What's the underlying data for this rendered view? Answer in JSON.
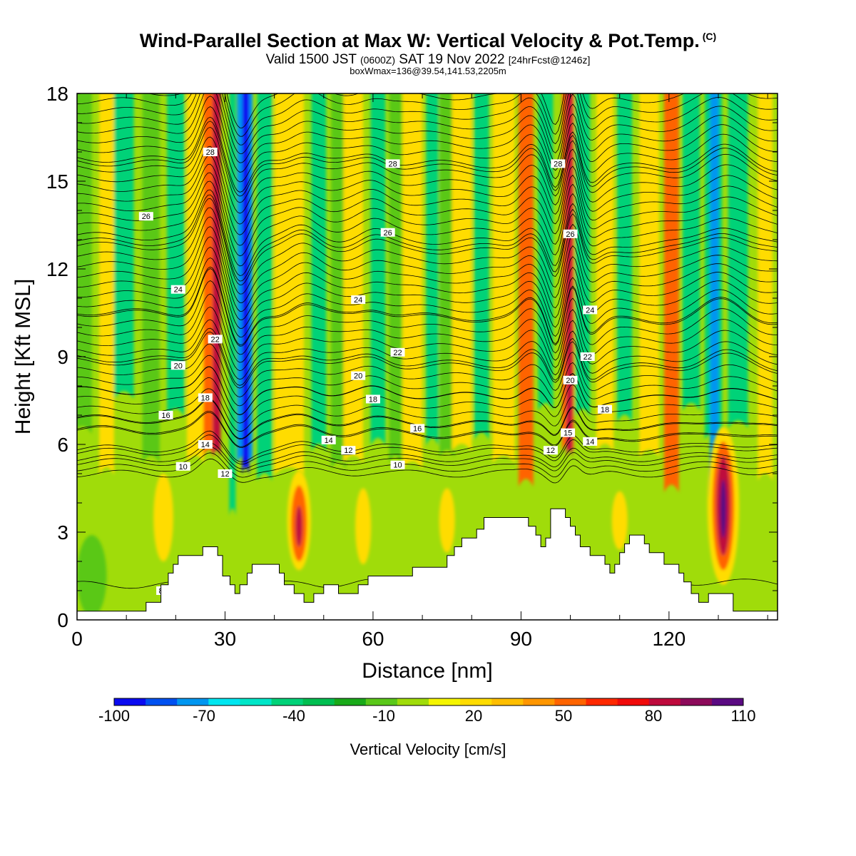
{
  "title": {
    "main": "Wind-Parallel Section at Max W: Vertical Velocity & Pot.Temp.",
    "mark": "(C)",
    "sub_valid": "Valid 1500 JST",
    "sub_z": "(0600Z)",
    "sub_date": "SAT 19 Nov 2022",
    "sub_fcst": "[24hrFcst@1246z]",
    "box": "boxWmax=136@39.54,141.53,2205m"
  },
  "chart_data": {
    "type": "heatmap",
    "xlabel": "Distance [nm]",
    "ylabel": "Height [Kft MSL]",
    "xlim": [
      0,
      142
    ],
    "ylim": [
      0,
      18
    ],
    "xticks": [
      "0",
      "30",
      "60",
      "90",
      "120"
    ],
    "xtick_values": [
      0,
      30,
      60,
      90,
      120
    ],
    "yticks": [
      "0",
      "3",
      "6",
      "9",
      "12",
      "15",
      "18"
    ],
    "ytick_values": [
      0,
      3,
      6,
      9,
      12,
      15,
      18
    ],
    "colorbar": {
      "label": "Vertical Velocity [cm/s]",
      "tick_labels": [
        "-100",
        "-70",
        "-40",
        "-10",
        "20",
        "50",
        "80",
        "110"
      ],
      "tick_values": [
        -100,
        -70,
        -40,
        -10,
        20,
        50,
        80,
        110
      ],
      "colors": [
        "#0a0af0",
        "#0050f0",
        "#0096f0",
        "#00e6f0",
        "#00e6c8",
        "#00d278",
        "#00be50",
        "#19aa19",
        "#5ac819",
        "#a0dc0a",
        "#f5f500",
        "#ffdc00",
        "#ffbe00",
        "#ff9600",
        "#ff6400",
        "#ff2800",
        "#f00a0a",
        "#be0a3c",
        "#8c0a5a",
        "#5a0a82"
      ]
    },
    "background_color": "#a0dc0a",
    "velocity_bands": [
      {
        "x": 1,
        "w": 4,
        "v": -10,
        "ext": 6.6
      },
      {
        "x": 6,
        "w": 3,
        "v": 20,
        "ext": 5.2
      },
      {
        "x": 9.5,
        "w": 4,
        "v": -40,
        "ext": 7.8
      },
      {
        "x": 15,
        "w": 3.5,
        "v": -10,
        "ext": 5.6
      },
      {
        "x": 20,
        "w": 3.5,
        "v": -40,
        "ext": 7.2
      },
      {
        "x": 24,
        "w": 3.5,
        "v": 20,
        "ext": 5.6
      },
      {
        "x": 26.7,
        "w": 2.2,
        "v": 50,
        "ext": 5.8
      },
      {
        "x": 28.3,
        "w": 1.6,
        "v": 80,
        "ext": 5.8
      },
      {
        "x": 31.5,
        "w": 1.3,
        "v": -40,
        "ext": 3.8
      },
      {
        "x": 34,
        "w": 3.2,
        "v": -70,
        "ext": 5.6
      },
      {
        "x": 34.2,
        "w": 1.4,
        "v": -100,
        "ext": 5.2
      },
      {
        "x": 38,
        "w": 3,
        "v": -40,
        "ext": 5.0
      },
      {
        "x": 43,
        "w": 6,
        "v": 20,
        "ext": 5.2
      },
      {
        "x": 49,
        "w": 3,
        "v": -40,
        "ext": 6.0
      },
      {
        "x": 53,
        "w": 3,
        "v": -10,
        "ext": 5.4
      },
      {
        "x": 56,
        "w": 4,
        "v": 20,
        "ext": 5.6
      },
      {
        "x": 61,
        "w": 3,
        "v": -40,
        "ext": 6.2
      },
      {
        "x": 64.5,
        "w": 2.5,
        "v": -10,
        "ext": 5.6
      },
      {
        "x": 68,
        "w": 4,
        "v": 20,
        "ext": 5.4
      },
      {
        "x": 72,
        "w": 2.5,
        "v": -40,
        "ext": 6.2
      },
      {
        "x": 75,
        "w": 3,
        "v": -10,
        "ext": 5.8
      },
      {
        "x": 78,
        "w": 4,
        "v": 20,
        "ext": 6.0
      },
      {
        "x": 82,
        "w": 3,
        "v": -40,
        "ext": 6.4
      },
      {
        "x": 86.5,
        "w": 4.5,
        "v": 20,
        "ext": 5.6
      },
      {
        "x": 91,
        "w": 3,
        "v": 50,
        "ext": 4.8
      },
      {
        "x": 95,
        "w": 3,
        "v": -40,
        "ext": 7.4
      },
      {
        "x": 99.5,
        "w": 2.4,
        "v": 50,
        "ext": 6.0
      },
      {
        "x": 99.8,
        "w": 1.2,
        "v": 80,
        "ext": 5.8
      },
      {
        "x": 102.5,
        "w": 3,
        "v": -40,
        "ext": 7.2
      },
      {
        "x": 107,
        "w": 3.5,
        "v": 20,
        "ext": 6.0
      },
      {
        "x": 111,
        "w": 3,
        "v": -40,
        "ext": 7.0
      },
      {
        "x": 116,
        "w": 4,
        "v": 20,
        "ext": 5.8
      },
      {
        "x": 120.5,
        "w": 3,
        "v": 50,
        "ext": 4.6
      },
      {
        "x": 124.5,
        "w": 3.5,
        "v": -40,
        "ext": 7.4
      },
      {
        "x": 129,
        "w": 3.5,
        "v": -40,
        "ext": 6.4
      },
      {
        "x": 129.2,
        "w": 1.8,
        "v": -70,
        "ext": 4.4
      },
      {
        "x": 134,
        "w": 4,
        "v": -40,
        "ext": 6.8
      },
      {
        "x": 139.5,
        "w": 3,
        "v": 20,
        "ext": 5.0
      }
    ],
    "velocity_blobs": [
      {
        "x": 45,
        "y": 3.4,
        "rx": 2.4,
        "ry": 1.7,
        "v": 20
      },
      {
        "x": 45,
        "y": 3.3,
        "rx": 1.6,
        "ry": 1.3,
        "v": 50
      },
      {
        "x": 45,
        "y": 3.2,
        "rx": 0.7,
        "ry": 0.7,
        "v": 80
      },
      {
        "x": 58,
        "y": 3.2,
        "rx": 1.6,
        "ry": 1.3,
        "v": 20
      },
      {
        "x": 75,
        "y": 3.4,
        "rx": 1.6,
        "ry": 1.1,
        "v": 20
      },
      {
        "x": 110,
        "y": 3.4,
        "rx": 1.6,
        "ry": 1.0,
        "v": 20
      },
      {
        "x": 131,
        "y": 3.9,
        "rx": 3.2,
        "ry": 2.7,
        "v": 20
      },
      {
        "x": 131,
        "y": 3.9,
        "rx": 2.2,
        "ry": 2.2,
        "v": 50
      },
      {
        "x": 131,
        "y": 3.9,
        "rx": 1.4,
        "ry": 1.7,
        "v": 80
      },
      {
        "x": 131,
        "y": 3.8,
        "rx": 0.6,
        "ry": 1.0,
        "v": 110
      },
      {
        "x": 17.5,
        "y": 3.5,
        "rx": 2.0,
        "ry": 1.5,
        "v": 20
      },
      {
        "x": 3,
        "y": 1.5,
        "rx": 3.0,
        "ry": 1.4,
        "v": -10
      }
    ],
    "terrain": [
      [
        0,
        0.3
      ],
      [
        14,
        0.3
      ],
      [
        14,
        0.6
      ],
      [
        17,
        0.6
      ],
      [
        17,
        1.2
      ],
      [
        18.5,
        1.2
      ],
      [
        18.5,
        1.6
      ],
      [
        19.5,
        1.6
      ],
      [
        19.5,
        1.9
      ],
      [
        20.5,
        1.9
      ],
      [
        20.5,
        2.2
      ],
      [
        25.5,
        2.2
      ],
      [
        25.5,
        2.5
      ],
      [
        28.5,
        2.5
      ],
      [
        28.5,
        2.2
      ],
      [
        29.5,
        2.2
      ],
      [
        29.5,
        1.5
      ],
      [
        31,
        1.5
      ],
      [
        31,
        1.2
      ],
      [
        32,
        1.2
      ],
      [
        32,
        0.9
      ],
      [
        33,
        0.9
      ],
      [
        33,
        1.2
      ],
      [
        34.5,
        1.2
      ],
      [
        34.5,
        1.6
      ],
      [
        35.5,
        1.6
      ],
      [
        35.5,
        1.9
      ],
      [
        41,
        1.9
      ],
      [
        41,
        1.6
      ],
      [
        42,
        1.6
      ],
      [
        42,
        1.2
      ],
      [
        44,
        1.2
      ],
      [
        44,
        0.9
      ],
      [
        46,
        0.9
      ],
      [
        46,
        0.6
      ],
      [
        48,
        0.6
      ],
      [
        48,
        0.9
      ],
      [
        50,
        0.9
      ],
      [
        50,
        1.2
      ],
      [
        53,
        1.2
      ],
      [
        53,
        0.9
      ],
      [
        57,
        0.9
      ],
      [
        57,
        1.2
      ],
      [
        59,
        1.2
      ],
      [
        59,
        1.5
      ],
      [
        68,
        1.5
      ],
      [
        68,
        1.8
      ],
      [
        75,
        1.8
      ],
      [
        75,
        2.2
      ],
      [
        76.5,
        2.2
      ],
      [
        76.5,
        2.5
      ],
      [
        78,
        2.5
      ],
      [
        78,
        2.8
      ],
      [
        81,
        2.8
      ],
      [
        81,
        3.1
      ],
      [
        82.5,
        3.1
      ],
      [
        82.5,
        3.5
      ],
      [
        91.5,
        3.5
      ],
      [
        91.5,
        3.2
      ],
      [
        93,
        3.2
      ],
      [
        93,
        2.9
      ],
      [
        94,
        2.9
      ],
      [
        94,
        2.5
      ],
      [
        95,
        2.5
      ],
      [
        95,
        2.8
      ],
      [
        96,
        2.8
      ],
      [
        96,
        3.8
      ],
      [
        99,
        3.8
      ],
      [
        99,
        3.5
      ],
      [
        100,
        3.5
      ],
      [
        100,
        3.2
      ],
      [
        101,
        3.2
      ],
      [
        101,
        2.9
      ],
      [
        102,
        2.9
      ],
      [
        102,
        2.5
      ],
      [
        104,
        2.5
      ],
      [
        104,
        2.2
      ],
      [
        107,
        2.2
      ],
      [
        107,
        1.9
      ],
      [
        108,
        1.9
      ],
      [
        108,
        1.6
      ],
      [
        109,
        1.6
      ],
      [
        109,
        1.9
      ],
      [
        110,
        1.9
      ],
      [
        110,
        2.3
      ],
      [
        111,
        2.3
      ],
      [
        111,
        2.6
      ],
      [
        112,
        2.6
      ],
      [
        112,
        2.9
      ],
      [
        115,
        2.9
      ],
      [
        115,
        2.6
      ],
      [
        116,
        2.6
      ],
      [
        116,
        2.3
      ],
      [
        119,
        2.3
      ],
      [
        119,
        1.9
      ],
      [
        122,
        1.9
      ],
      [
        122,
        1.6
      ],
      [
        123,
        1.6
      ],
      [
        123,
        1.3
      ],
      [
        124.5,
        1.3
      ],
      [
        124.5,
        0.9
      ],
      [
        126,
        0.9
      ],
      [
        126,
        0.6
      ],
      [
        128,
        0.6
      ],
      [
        128,
        0.9
      ],
      [
        133,
        0.9
      ],
      [
        133,
        0.3
      ],
      [
        142,
        0.3
      ]
    ],
    "theta_contours": [
      {
        "y": 1.2,
        "label": "8"
      },
      {
        "y": 5.0,
        "label": "10"
      },
      {
        "y": 5.4,
        "label": "12"
      },
      {
        "y": 5.75,
        "label": "14"
      },
      {
        "y": 6.15,
        "label": "16"
      },
      {
        "y": 6.55,
        "label": "18"
      },
      {
        "y": 7.5,
        "label": "20"
      },
      {
        "y": 8.6,
        "label": "22"
      },
      {
        "y": 10.2,
        "label": "24"
      },
      {
        "y": 12.6,
        "label": "26"
      },
      {
        "y": 15.3,
        "label": "28"
      }
    ],
    "contour_labels": [
      {
        "text": "8",
        "x": 17,
        "y": 1.0
      },
      {
        "text": "10",
        "x": 21.5,
        "y": 5.25
      },
      {
        "text": "12",
        "x": 30,
        "y": 5.0
      },
      {
        "text": "12",
        "x": 55,
        "y": 5.8
      },
      {
        "text": "12",
        "x": 96,
        "y": 5.8
      },
      {
        "text": "14",
        "x": 26,
        "y": 6.0
      },
      {
        "text": "14",
        "x": 51,
        "y": 6.15
      },
      {
        "text": "14",
        "x": 104,
        "y": 6.1
      },
      {
        "text": "10",
        "x": 65,
        "y": 5.3
      },
      {
        "text": "16",
        "x": 18,
        "y": 7.0
      },
      {
        "text": "16",
        "x": 69,
        "y": 6.55
      },
      {
        "text": "15",
        "x": 99.5,
        "y": 6.4
      },
      {
        "text": "18",
        "x": 26,
        "y": 7.6
      },
      {
        "text": "18",
        "x": 60,
        "y": 7.55
      },
      {
        "text": "18",
        "x": 107,
        "y": 7.2
      },
      {
        "text": "20",
        "x": 20.5,
        "y": 8.7
      },
      {
        "text": "20",
        "x": 57,
        "y": 8.35
      },
      {
        "text": "20",
        "x": 100,
        "y": 8.2
      },
      {
        "text": "22",
        "x": 28,
        "y": 9.6
      },
      {
        "text": "22",
        "x": 65,
        "y": 9.15
      },
      {
        "text": "22",
        "x": 103.5,
        "y": 9.0
      },
      {
        "text": "24",
        "x": 20.5,
        "y": 11.3
      },
      {
        "text": "24",
        "x": 57,
        "y": 10.95
      },
      {
        "text": "24",
        "x": 104,
        "y": 10.6
      },
      {
        "text": "26",
        "x": 14,
        "y": 13.8
      },
      {
        "text": "26",
        "x": 63,
        "y": 13.25
      },
      {
        "text": "26",
        "x": 100,
        "y": 13.2
      },
      {
        "text": "28",
        "x": 27,
        "y": 16.0
      },
      {
        "text": "28",
        "x": 64,
        "y": 15.6
      },
      {
        "text": "28",
        "x": 97.5,
        "y": 15.6
      }
    ]
  },
  "xlabel_text": "Distance [nm]",
  "ylabel_text": "Height [Kft MSL]"
}
